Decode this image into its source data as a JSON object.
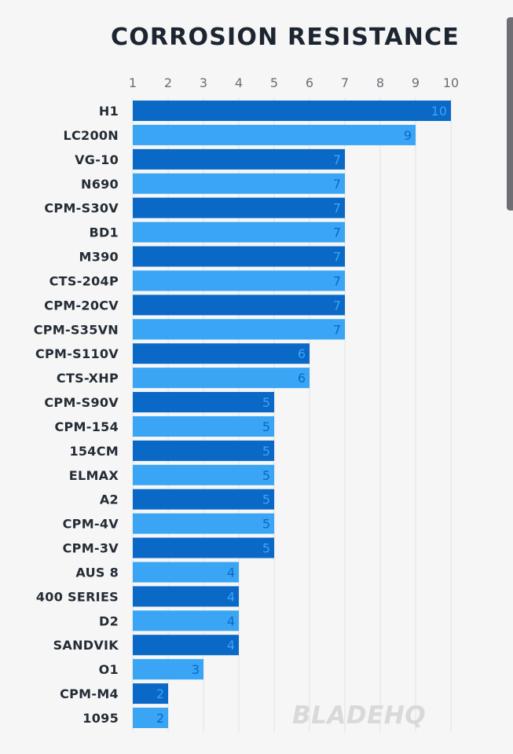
{
  "chart_data": {
    "type": "bar",
    "orientation": "horizontal",
    "title": "CORROSION RESISTANCE",
    "xlabel": "",
    "ylabel": "",
    "xlim": [
      1,
      10
    ],
    "x_ticks": [
      "1",
      "2",
      "3",
      "4",
      "5",
      "6",
      "7",
      "8",
      "9",
      "10"
    ],
    "grid": true,
    "categories": [
      "H1",
      "LC200N",
      "VG-10",
      "N690",
      "CPM-S30V",
      "BD1",
      "M390",
      "CTS-204P",
      "CPM-20CV",
      "CPM-S35VN",
      "CPM-S110V",
      "CTS-XHP",
      "CPM-S90V",
      "CPM-154",
      "154CM",
      "ELMAX",
      "A2",
      "CPM-4V",
      "CPM-3V",
      "AUS 8",
      "400 SERIES",
      "D2",
      "SANDVIK",
      "O1",
      "CPM-M4",
      "1095"
    ],
    "values": [
      10,
      9,
      7,
      7,
      7,
      7,
      7,
      7,
      7,
      7,
      6,
      6,
      5,
      5,
      5,
      5,
      5,
      5,
      5,
      4,
      4,
      4,
      4,
      3,
      2,
      2
    ],
    "colors": {
      "dark": "#0a68c6",
      "light": "#3aa5f5",
      "grid": "#e2e2e2"
    }
  },
  "watermark": "BLADEHQ"
}
